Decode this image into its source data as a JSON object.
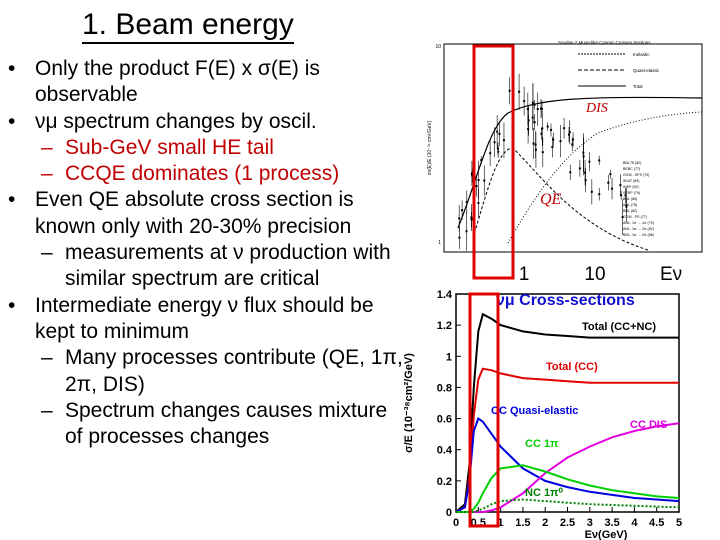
{
  "slide": {
    "title": "1. Beam energy",
    "bullets": [
      {
        "level": 1,
        "text": "Only the product F(E) x σ(E) is observable"
      },
      {
        "level": 1,
        "text": "νμ spectrum changes by oscil."
      },
      {
        "level": 2,
        "text": "Sub-GeV small HE tail",
        "color": "#c00000"
      },
      {
        "level": 2,
        "text": "CCQE dominates (1 process)",
        "color": "#c00000"
      },
      {
        "level": 1,
        "text": "Even QE absolute cross section is known only with  20-30% precision"
      },
      {
        "level": 2,
        "text": "measurements at ν production with similar spectrum are critical"
      },
      {
        "level": 1,
        "text": "Intermediate energy ν flux should be kept to minimum"
      },
      {
        "level": 2,
        "text": "Many processes contribute (QE, 1π, 2π, DIS)"
      },
      {
        "level": 2,
        "text": "Spectrum changes causes mixture of processes changes"
      }
    ]
  },
  "top_plot": {
    "header": "Soudan 2 Muon-like Cosmic Crosses Sections",
    "yaxis_label": "σν(E)/E (10⁻³⁸ cm²/GeV)",
    "ytick_1": "1",
    "ytick_10": "10",
    "legend_lines": [
      "Inelastic",
      "Quasi-elastic",
      "Total"
    ],
    "dis_label": "DIS",
    "qe_label": "QE",
    "experiments": [
      "BNL7ft (82)",
      "BEBC (77)",
      "GGM - SPS (79)",
      "SKAT (89)",
      "IHEP (92)",
      "SERP (79)",
      "BNL (85)",
      "ANL (75)",
      "BNL (82)",
      "GGM - PS (77)",
      "ANL: 1π → 1π (79)",
      "ANL: 1π → 2π (82)",
      "BNL: 1π → 2π (86)"
    ],
    "x_labels": [
      "1",
      "10",
      "Eν"
    ]
  },
  "chart_data": {
    "type": "line",
    "title": "νμ Cross-sections",
    "xlabel": "Eν(GeV)",
    "ylabel": "σ/E (10⁻³⁸cm²/GeV)",
    "xlim": [
      0,
      5
    ],
    "ylim": [
      0,
      1.4
    ],
    "xticks": [
      "0",
      "0.5",
      "1",
      "1.5",
      "2",
      "2.5",
      "3",
      "3.5",
      "4",
      "4.5",
      "5"
    ],
    "yticks": [
      "0",
      "0.2",
      "0.4",
      "0.6",
      "0.8",
      "1",
      "1.2",
      "1.4"
    ],
    "x": [
      0,
      0.2,
      0.3,
      0.4,
      0.5,
      0.6,
      0.8,
      1,
      1.5,
      2,
      2.5,
      3,
      3.5,
      4,
      4.5,
      5
    ],
    "series": [
      {
        "name": "Total (CC+NC)",
        "color": "#000000",
        "values": [
          0,
          0.05,
          0.3,
          0.8,
          1.16,
          1.27,
          1.24,
          1.2,
          1.16,
          1.14,
          1.13,
          1.12,
          1.12,
          1.12,
          1.12,
          1.12
        ]
      },
      {
        "name": "Total (CC)",
        "color": "#e00000",
        "values": [
          0,
          0.03,
          0.22,
          0.62,
          0.85,
          0.92,
          0.91,
          0.89,
          0.86,
          0.85,
          0.84,
          0.83,
          0.83,
          0.83,
          0.83,
          0.83
        ]
      },
      {
        "name": "CC Quasi-elastic",
        "color": "#0000e0",
        "values": [
          0,
          0.03,
          0.2,
          0.52,
          0.6,
          0.58,
          0.5,
          0.42,
          0.28,
          0.2,
          0.16,
          0.13,
          0.11,
          0.09,
          0.08,
          0.07
        ]
      },
      {
        "name": "CC DIS",
        "color": "#e000e0",
        "values": [
          0,
          0,
          0,
          0,
          0,
          0,
          0.01,
          0.03,
          0.12,
          0.25,
          0.35,
          0.42,
          0.48,
          0.52,
          0.55,
          0.57
        ]
      },
      {
        "name": "CC 1π",
        "color": "#00d000",
        "values": [
          0,
          0,
          0,
          0.02,
          0.06,
          0.12,
          0.22,
          0.28,
          0.3,
          0.26,
          0.21,
          0.17,
          0.14,
          0.12,
          0.1,
          0.09
        ]
      },
      {
        "name": "NC 1π⁰",
        "color": "#008000",
        "values": [
          0,
          0,
          0,
          0,
          0.01,
          0.02,
          0.05,
          0.07,
          0.08,
          0.07,
          0.06,
          0.05,
          0.045,
          0.04,
          0.035,
          0.03
        ]
      }
    ]
  }
}
